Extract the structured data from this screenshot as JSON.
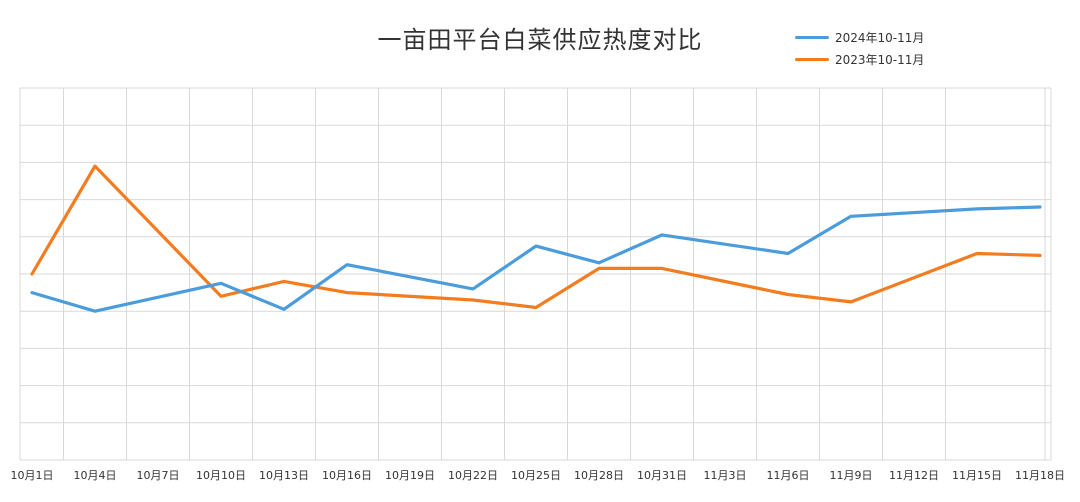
{
  "chart_data": {
    "type": "line",
    "title": "一亩田平台白菜供应热度对比",
    "x": [
      "10月1日",
      "10月4日",
      "10月7日",
      "10月10日",
      "10月13日",
      "10月16日",
      "10月19日",
      "10月22日",
      "10月25日",
      "10月28日",
      "10月31日",
      "11月3日",
      "11月6日",
      "11月9日",
      "11月12日",
      "11月15日",
      "11月18日"
    ],
    "series": [
      {
        "name": "2024年10-11月",
        "color": "#4a9cdc",
        "points": [
          {
            "x": "10月1日",
            "y": 4.5
          },
          {
            "x": "10月4日",
            "y": 4.0
          },
          {
            "x": "10月10日",
            "y": 4.75
          },
          {
            "x": "10月13日",
            "y": 4.05
          },
          {
            "x": "10月16日",
            "y": 5.25
          },
          {
            "x": "10月22日",
            "y": 4.6
          },
          {
            "x": "10月25日",
            "y": 5.75
          },
          {
            "x": "10月28日",
            "y": 5.3
          },
          {
            "x": "10月31日",
            "y": 6.05
          },
          {
            "x": "11月6日",
            "y": 5.55
          },
          {
            "x": "11月9日",
            "y": 6.55
          },
          {
            "x": "11月15日",
            "y": 6.75
          },
          {
            "x": "11月18日",
            "y": 6.8
          }
        ]
      },
      {
        "name": "2023年10-11月",
        "color": "#f47c20",
        "points": [
          {
            "x": "10月1日",
            "y": 5.0
          },
          {
            "x": "10月4日",
            "y": 7.9
          },
          {
            "x": "10月10日",
            "y": 4.4
          },
          {
            "x": "10月13日",
            "y": 4.8
          },
          {
            "x": "10月16日",
            "y": 4.5
          },
          {
            "x": "10月22日",
            "y": 4.3
          },
          {
            "x": "10月25日",
            "y": 4.1
          },
          {
            "x": "10月28日",
            "y": 5.15
          },
          {
            "x": "10月31日",
            "y": 5.15
          },
          {
            "x": "11月6日",
            "y": 4.45
          },
          {
            "x": "11月9日",
            "y": 4.25
          },
          {
            "x": "11月15日",
            "y": 5.55
          },
          {
            "x": "11月18日",
            "y": 5.5
          }
        ]
      }
    ],
    "ylim": [
      0,
      10
    ],
    "grid": true,
    "legend_position": "top-right"
  }
}
